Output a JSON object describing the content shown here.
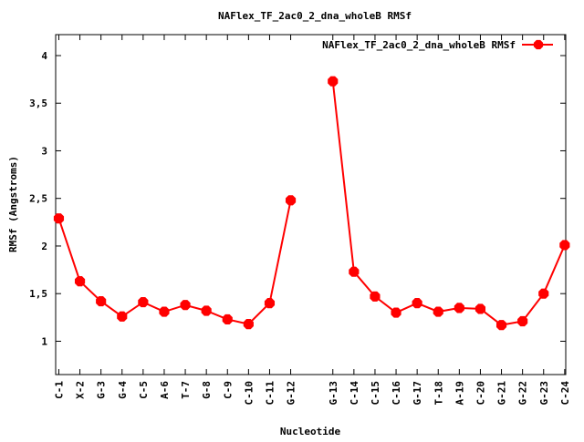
{
  "chart_data": {
    "type": "line",
    "title": "NAFlex_TF_2ac0_2_dna_wholeB RMSf",
    "xlabel": "Nucleotide",
    "ylabel": "RMSf (Angstroms)",
    "ylim": [
      0.65,
      4.22
    ],
    "yticks": [
      {
        "value": 1,
        "label": "1"
      },
      {
        "value": 1.5,
        "label": "1,5"
      },
      {
        "value": 2,
        "label": "2"
      },
      {
        "value": 2.5,
        "label": "2,5"
      },
      {
        "value": 3,
        "label": "3"
      },
      {
        "value": 3.5,
        "label": "3,5"
      },
      {
        "value": 4,
        "label": "4"
      }
    ],
    "xlim": [
      0.85,
      25.05
    ],
    "grid": false,
    "legend_position": "top-right",
    "series": [
      {
        "name": "NAFlex_TF_2ac0_2_dna_wholeB RMSf",
        "color": "#ff0000",
        "segments": [
          [
            {
              "x": 1,
              "label": "C-1",
              "y": 2.29
            },
            {
              "x": 2,
              "label": "X-2",
              "y": 1.63
            },
            {
              "x": 3,
              "label": "G-3",
              "y": 1.42
            },
            {
              "x": 4,
              "label": "G-4",
              "y": 1.26
            },
            {
              "x": 5,
              "label": "C-5",
              "y": 1.41
            },
            {
              "x": 6,
              "label": "A-6",
              "y": 1.31
            },
            {
              "x": 7,
              "label": "T-7",
              "y": 1.38
            },
            {
              "x": 8,
              "label": "G-8",
              "y": 1.32
            },
            {
              "x": 9,
              "label": "C-9",
              "y": 1.23
            },
            {
              "x": 10,
              "label": "C-10",
              "y": 1.18
            },
            {
              "x": 11,
              "label": "C-11",
              "y": 1.4
            },
            {
              "x": 12,
              "label": "G-12",
              "y": 2.48
            }
          ],
          [
            {
              "x": 14,
              "label": "G-13",
              "y": 3.73
            },
            {
              "x": 15,
              "label": "C-14",
              "y": 1.73
            },
            {
              "x": 16,
              "label": "C-15",
              "y": 1.47
            },
            {
              "x": 17,
              "label": "C-16",
              "y": 1.3
            },
            {
              "x": 18,
              "label": "G-17",
              "y": 1.4
            },
            {
              "x": 19,
              "label": "T-18",
              "y": 1.31
            },
            {
              "x": 20,
              "label": "A-19",
              "y": 1.35
            },
            {
              "x": 21,
              "label": "C-20",
              "y": 1.34
            },
            {
              "x": 22,
              "label": "G-21",
              "y": 1.17
            },
            {
              "x": 23,
              "label": "G-22",
              "y": 1.21
            },
            {
              "x": 24,
              "label": "G-23",
              "y": 1.5
            },
            {
              "x": 25,
              "label": "C-24",
              "y": 2.01
            }
          ]
        ]
      }
    ]
  }
}
